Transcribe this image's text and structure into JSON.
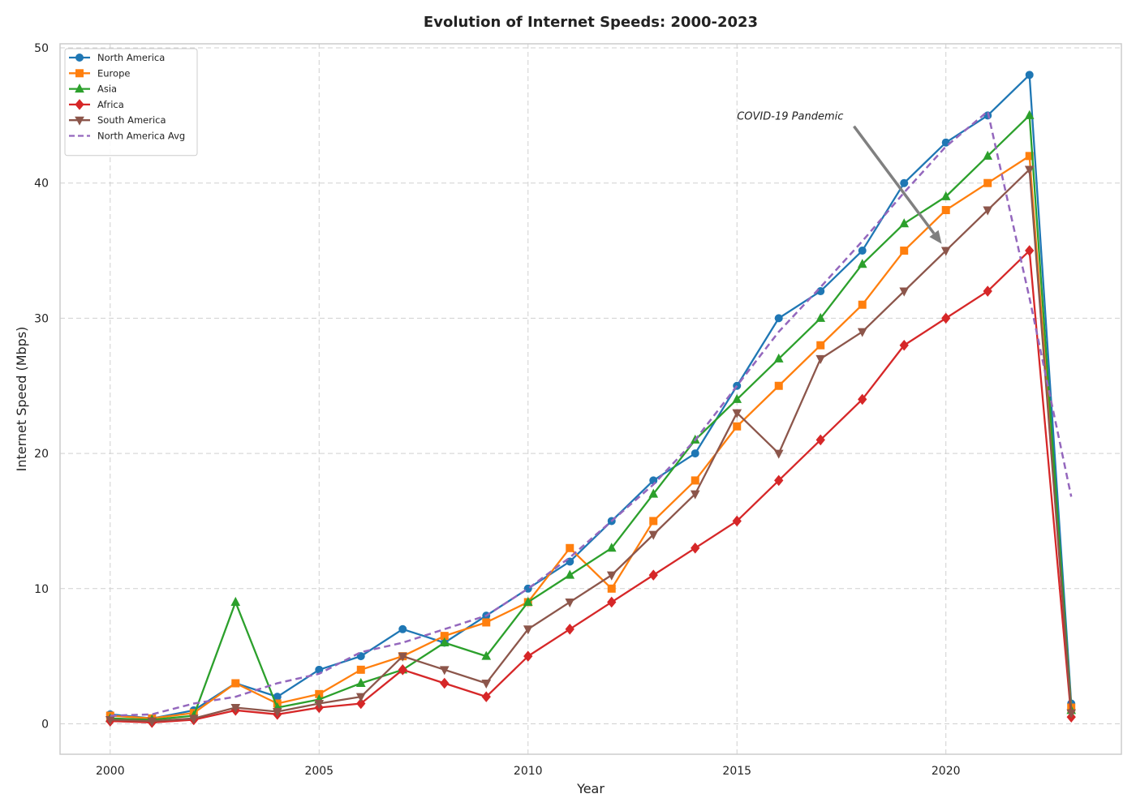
{
  "chart_data": {
    "type": "line",
    "title": "Evolution of Internet Speeds: 2000-2023",
    "xlabel": "Year",
    "ylabel": "Internet Speed (Mbps)",
    "xlim": [
      1998.8,
      2024.2
    ],
    "ylim": [
      -2.25,
      50.3
    ],
    "xticks": [
      2000,
      2005,
      2010,
      2015,
      2020
    ],
    "yticks": [
      0,
      10,
      20,
      30,
      40,
      50
    ],
    "grid": true,
    "legend_position": "top-left",
    "x": [
      2000,
      2001,
      2002,
      2003,
      2004,
      2005,
      2006,
      2007,
      2008,
      2009,
      2010,
      2011,
      2012,
      2013,
      2014,
      2015,
      2016,
      2017,
      2018,
      2019,
      2020,
      2021,
      2022,
      2023
    ],
    "series": [
      {
        "name": "North America",
        "color": "#1f77b4",
        "marker": "circle",
        "dashed": false,
        "values": [
          0.7,
          0.4,
          1.0,
          3.0,
          2.0,
          4.0,
          5.0,
          7.0,
          6.0,
          8.0,
          10.0,
          12.0,
          15.0,
          18.0,
          20.0,
          25.0,
          30.0,
          32.0,
          35.0,
          40.0,
          43.0,
          45.0,
          48.0,
          1.5
        ]
      },
      {
        "name": "Europe",
        "color": "#ff7f0e",
        "marker": "square",
        "dashed": false,
        "values": [
          0.6,
          0.4,
          0.8,
          3.0,
          1.5,
          2.2,
          4.0,
          5.0,
          6.5,
          7.5,
          9.0,
          13.0,
          10.0,
          15.0,
          18.0,
          22.0,
          25.0,
          28.0,
          31.0,
          35.0,
          38.0,
          40.0,
          42.0,
          1.2
        ]
      },
      {
        "name": "Asia",
        "color": "#2ca02c",
        "marker": "triangle-up",
        "dashed": false,
        "values": [
          0.4,
          0.3,
          0.6,
          9.0,
          1.2,
          1.8,
          3.0,
          4.0,
          6.0,
          5.0,
          9.0,
          11.0,
          13.0,
          17.0,
          21.0,
          24.0,
          27.0,
          30.0,
          34.0,
          37.0,
          39.0,
          42.0,
          45.0,
          1.0
        ]
      },
      {
        "name": "Africa",
        "color": "#d62728",
        "marker": "diamond",
        "dashed": false,
        "values": [
          0.2,
          0.1,
          0.3,
          1.0,
          0.7,
          1.2,
          1.5,
          4.0,
          3.0,
          2.0,
          5.0,
          7.0,
          9.0,
          11.0,
          13.0,
          15.0,
          18.0,
          21.0,
          24.0,
          28.0,
          30.0,
          32.0,
          35.0,
          0.5
        ]
      },
      {
        "name": "South America",
        "color": "#8c564b",
        "marker": "triangle-down",
        "dashed": false,
        "values": [
          0.3,
          0.2,
          0.4,
          1.2,
          0.9,
          1.5,
          2.0,
          5.0,
          4.0,
          3.0,
          7.0,
          9.0,
          11.0,
          14.0,
          17.0,
          23.0,
          20.0,
          27.0,
          29.0,
          32.0,
          35.0,
          38.0,
          41.0,
          0.8
        ]
      },
      {
        "name": "North America Avg",
        "color": "#9467bd",
        "marker": "none",
        "dashed": true,
        "values": [
          0.6,
          0.7,
          1.5,
          2.0,
          3.0,
          3.7,
          5.3,
          6.0,
          7.0,
          8.0,
          10.0,
          12.3,
          15.0,
          17.7,
          21.0,
          25.0,
          29.0,
          32.3,
          35.7,
          39.3,
          42.7,
          45.3,
          31.5,
          16.8
        ]
      }
    ],
    "annotation": {
      "text": "COVID-19 Pandemic",
      "text_x": 2015,
      "text_y": 45,
      "arrow_from": [
        2017.8,
        44.2
      ],
      "arrow_to": [
        2019.9,
        35.5
      ],
      "arrow_color": "#808080"
    }
  }
}
